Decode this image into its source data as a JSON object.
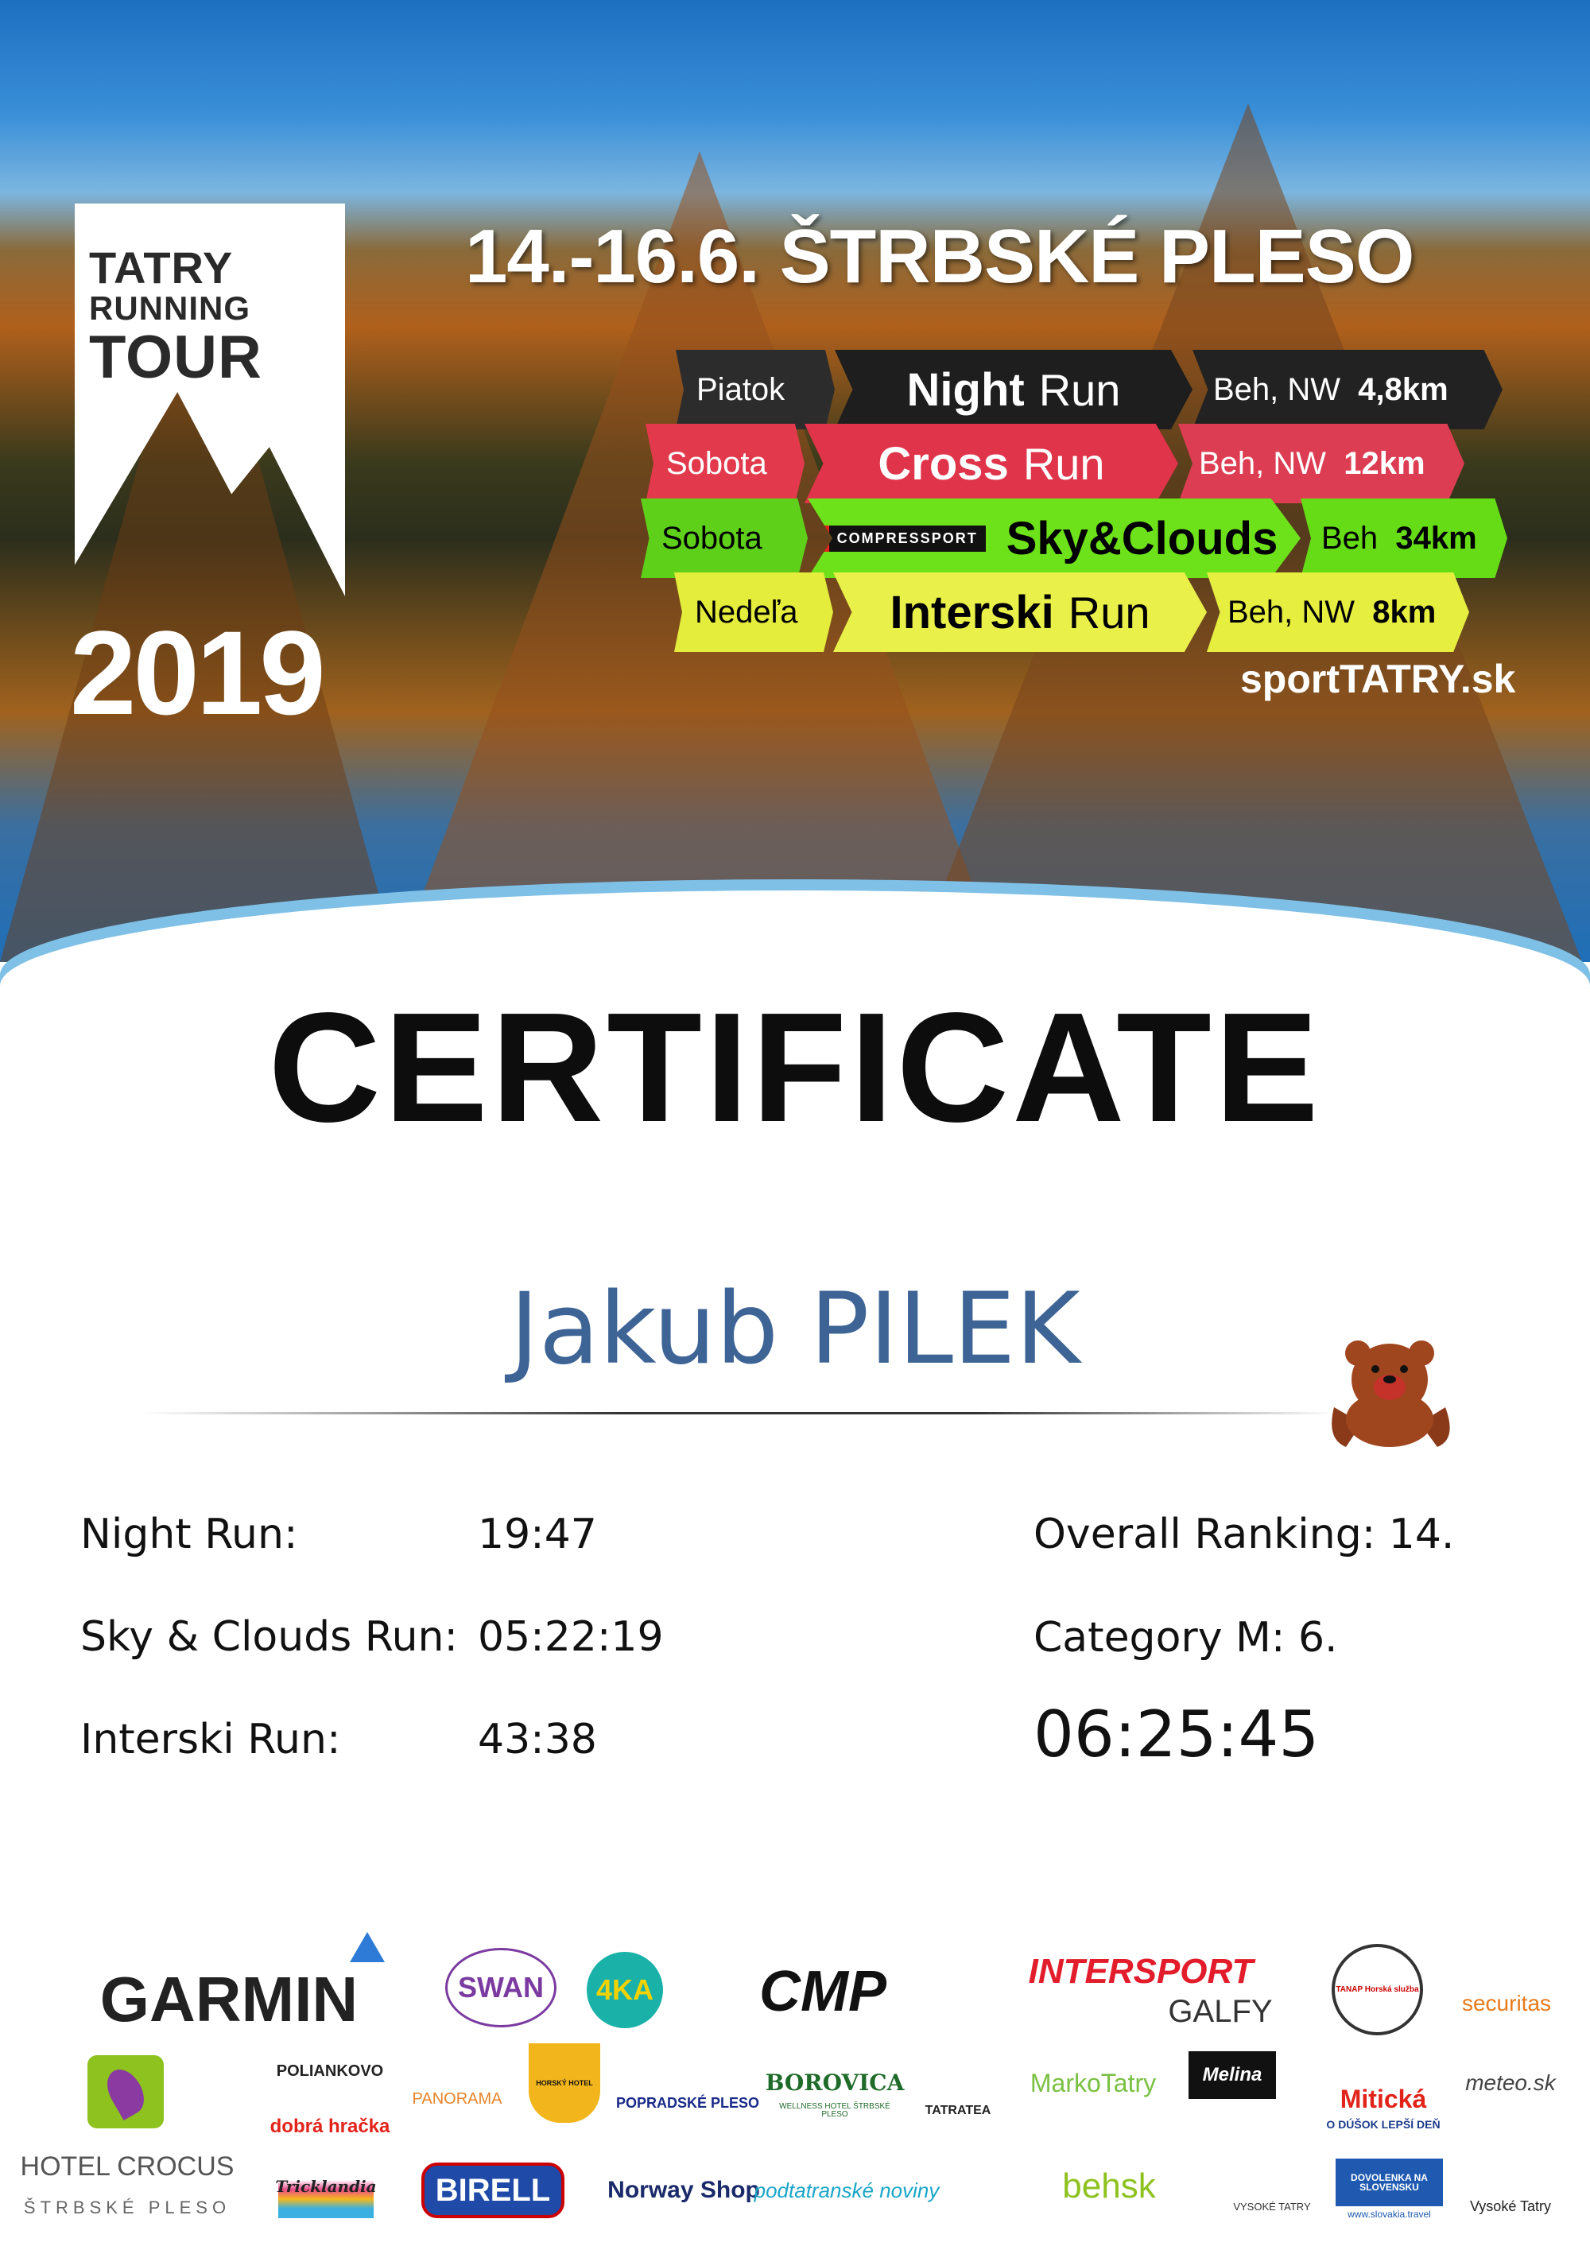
{
  "header": {
    "logo_lines": [
      "TATRY",
      "RUNNING",
      "TOUR"
    ],
    "year": "2019",
    "date_location": "14.-16.6.  ŠTRBSKÉ PLESO",
    "website": "sportTATRY.sk"
  },
  "schedule": [
    {
      "day": "Piatok",
      "race_bold": "Night",
      "race_rest": "Run",
      "type": "Beh, NW",
      "distance": "4,8km",
      "color": "#222222",
      "text_color": "#ffffff"
    },
    {
      "day": "Sobota",
      "race_bold": "Cross",
      "race_rest": "Run",
      "type": "Beh, NW",
      "distance": "12km",
      "color": "#e0344a",
      "text_color": "#ffffff"
    },
    {
      "day": "Sobota",
      "sponsor": "COMPRESSPORT",
      "race_bold": "Sky&Clouds",
      "race_rest": "",
      "type": "Beh",
      "distance": "34km",
      "color": "#6de11a",
      "text_color": "#000000"
    },
    {
      "day": "Nedeľa",
      "race_bold": "Interski",
      "race_rest": "Run",
      "type": "Beh, NW",
      "distance": "8km",
      "color": "#eaf04a",
      "text_color": "#000000"
    }
  ],
  "certificate": {
    "title": "CERTIFICATE",
    "name": "Jakub PILEK",
    "name_color": "#3e6496",
    "results": [
      {
        "label": "Night Run:",
        "value": "19:47"
      },
      {
        "label": "Sky & Clouds Run:",
        "value": "05:22:19"
      },
      {
        "label": "Interski Run:",
        "value": "43:38"
      }
    ],
    "overall_ranking": "Overall Ranking: 14.",
    "category": "Category M: 6.",
    "total_time": "06:25:45"
  },
  "sponsors": [
    "GARMIN",
    "SWAN",
    "4KA",
    "CMP",
    "INTERSPORT",
    "GALFY",
    "TANAP Horská služba",
    "securitas",
    "HOTEL CROCUS",
    "ŠTRBSKÉ PLESO",
    "POLIANKOVO",
    "dobrá hračka",
    "PANORAMA",
    "HORSKÝ HOTEL",
    "POPRADSKÉ PLESO",
    "BOROVICA",
    "WELLNESS HOTEL ŠTRBSKÉ PLESO",
    "TATRATEA",
    "MarkoTatry",
    "Melina",
    "Mitická",
    "O DÚŠOK LEPŠÍ DEŇ",
    "meteo.sk",
    "Tricklandia",
    "BIRELL",
    "Norway Shop",
    "podtatranské noviny",
    "behsk",
    "VYSOKÉ TATRY",
    "DOVOLENKA NA SLOVENSKU",
    "www.slovakia.travel",
    "Vysoké Tatry"
  ]
}
